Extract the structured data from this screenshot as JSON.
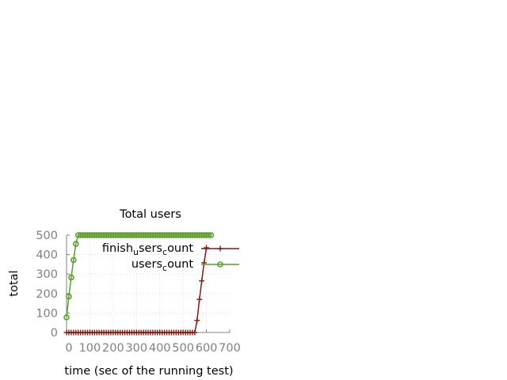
{
  "chart_data": {
    "type": "line",
    "title": "Total users",
    "xlabel": "time (sec of the running test)",
    "ylabel": "total",
    "xlim": [
      0,
      700
    ],
    "ylim": [
      0,
      500
    ],
    "xticks": [
      0,
      100,
      200,
      300,
      400,
      500,
      600,
      700
    ],
    "xtick_labels": [
      "0",
      "100",
      "200",
      "300",
      "400",
      "500",
      "600",
      "700"
    ],
    "yticks": [
      0,
      100,
      200,
      300,
      400,
      500
    ],
    "yticks_labels": [
      "0",
      "100",
      "200",
      "300",
      "400",
      "500"
    ],
    "grid": true,
    "legend_position": "top-right",
    "legend": [
      {
        "key": "finish",
        "text": "finish",
        "sub1": "u",
        "mid": "sers",
        "sub2": "c",
        "tail": "ount"
      },
      {
        "key": "users",
        "text": "users",
        "sub1": "c",
        "mid": "ount",
        "sub2": "",
        "tail": ""
      }
    ],
    "series": [
      {
        "key": "finish",
        "color": "#7f1a12",
        "marker": "plus",
        "x": [
          0,
          10,
          20,
          30,
          40,
          50,
          60,
          70,
          80,
          90,
          100,
          110,
          120,
          130,
          140,
          150,
          160,
          170,
          180,
          190,
          200,
          210,
          220,
          230,
          240,
          250,
          260,
          270,
          280,
          290,
          300,
          310,
          320,
          330,
          340,
          350,
          360,
          370,
          380,
          390,
          400,
          410,
          420,
          430,
          440,
          450,
          460,
          470,
          480,
          490,
          500,
          510,
          520,
          530,
          540,
          550,
          560,
          570,
          580,
          590,
          600
        ],
        "y": [
          0,
          0,
          0,
          0,
          0,
          0,
          0,
          0,
          0,
          0,
          0,
          0,
          0,
          0,
          0,
          0,
          0,
          0,
          0,
          0,
          0,
          0,
          0,
          0,
          0,
          0,
          0,
          0,
          0,
          0,
          0,
          0,
          0,
          0,
          0,
          0,
          0,
          0,
          0,
          0,
          0,
          0,
          0,
          0,
          0,
          0,
          0,
          0,
          0,
          0,
          0,
          0,
          0,
          0,
          0,
          0,
          62,
          170,
          265,
          358,
          435
        ]
      },
      {
        "key": "users",
        "color": "#5e9c31",
        "marker": "circle",
        "x": [
          0,
          10,
          20,
          30,
          40,
          50,
          60,
          70,
          80,
          90,
          100,
          110,
          120,
          130,
          140,
          150,
          160,
          170,
          180,
          190,
          200,
          210,
          220,
          230,
          240,
          250,
          260,
          270,
          280,
          290,
          300,
          310,
          320,
          330,
          340,
          350,
          360,
          370,
          380,
          390,
          400,
          410,
          420,
          430,
          440,
          450,
          460,
          470,
          480,
          490,
          500,
          510,
          520,
          530,
          540,
          550,
          560,
          570,
          580,
          590,
          600,
          610,
          620
        ],
        "y": [
          78,
          185,
          283,
          372,
          455,
          500,
          500,
          500,
          500,
          500,
          500,
          500,
          500,
          500,
          500,
          500,
          500,
          500,
          500,
          500,
          500,
          500,
          500,
          500,
          500,
          500,
          500,
          500,
          500,
          500,
          500,
          500,
          500,
          500,
          500,
          500,
          500,
          500,
          500,
          500,
          500,
          500,
          500,
          500,
          500,
          500,
          500,
          500,
          500,
          500,
          500,
          500,
          500,
          500,
          500,
          500,
          500,
          500,
          500,
          500,
          500,
          500,
          500
        ]
      }
    ]
  }
}
